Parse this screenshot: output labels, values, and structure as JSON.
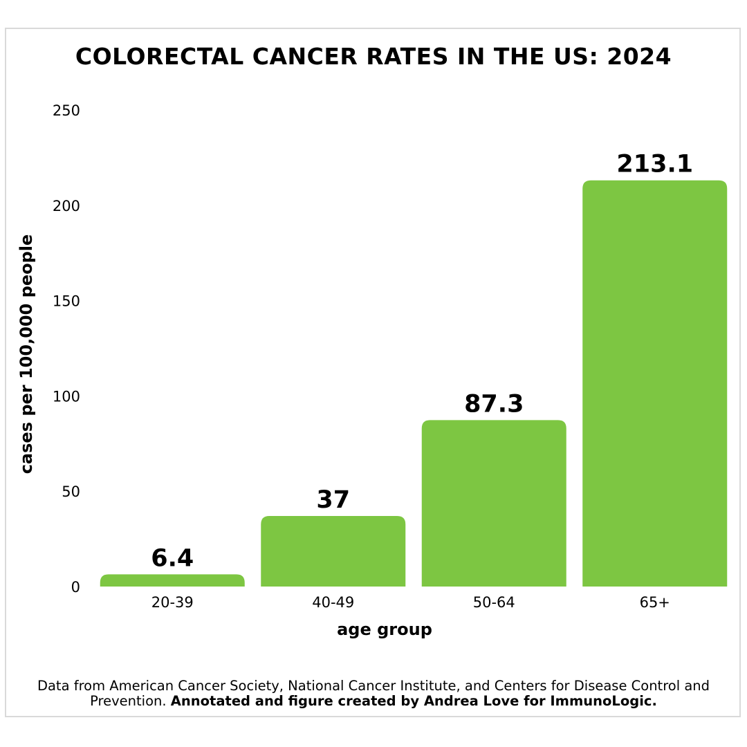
{
  "chart_data": {
    "type": "bar",
    "title": "COLORECTAL CANCER RATES IN THE US: 2024",
    "xlabel": "age group",
    "ylabel": "cases per 100,000 people",
    "categories": [
      "20-39",
      "40-49",
      "50-64",
      "65+"
    ],
    "values": [
      6.4,
      37,
      87.3,
      213.1
    ],
    "value_labels": [
      "6.4",
      "37",
      "87.3",
      "213.1"
    ],
    "ylim": [
      0,
      250
    ],
    "yticks": [
      0,
      50,
      100,
      150,
      200,
      250
    ],
    "grid": false,
    "legend": "none",
    "bar_color": "#7dc642"
  },
  "source": {
    "text": "Data from American Cancer Society, National Cancer Institute, and Centers for Disease Control and Prevention.",
    "credit": "Annotated and figure created by Andrea Love for ImmunoLogic."
  }
}
